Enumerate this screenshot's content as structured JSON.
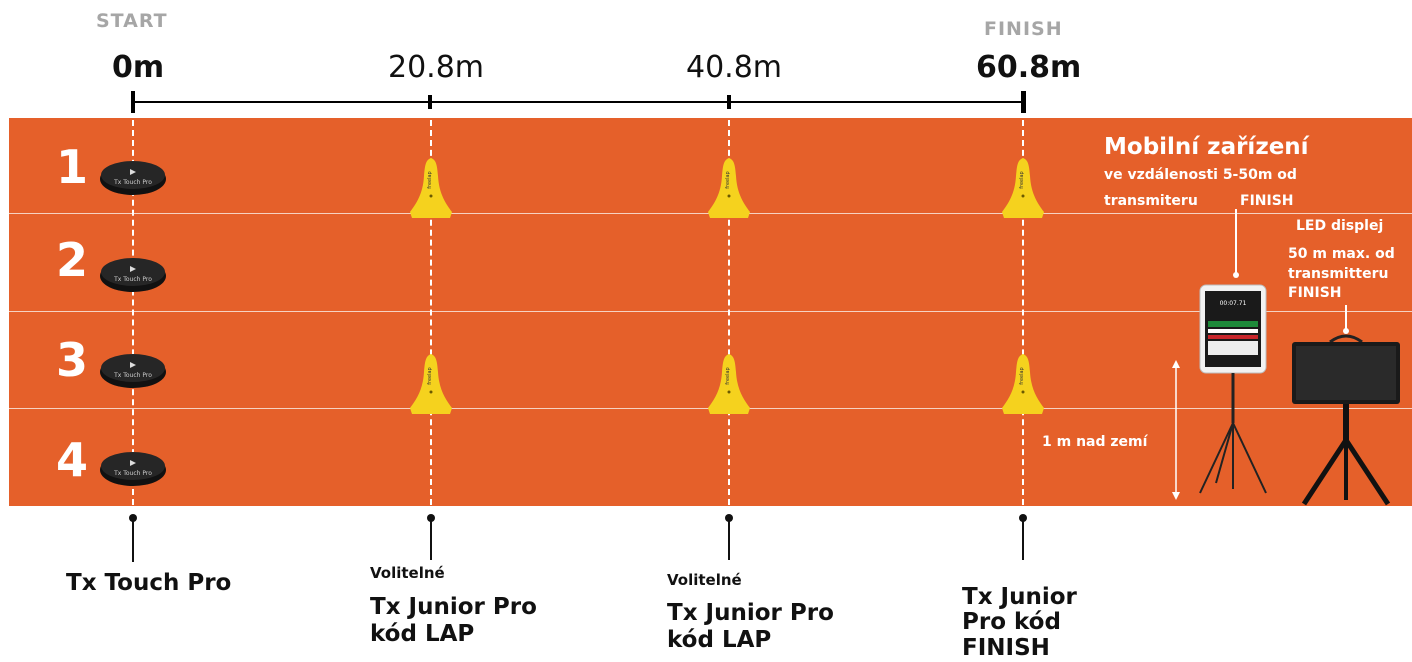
{
  "header": {
    "start_label": "START",
    "finish_label": "FINISH",
    "markers": [
      "0m",
      "20.8m",
      "40.8m",
      "60.8m"
    ]
  },
  "lanes": [
    "1",
    "2",
    "3",
    "4"
  ],
  "device": {
    "title": "Mobilní zařízení",
    "line1": "ve vzdálenosti 5-50m od",
    "line2a": "transmiteru",
    "line2b": "FINISH",
    "screen_time": "00:07.71"
  },
  "led": {
    "title": "LED displej",
    "line1": "50 m max. od",
    "line2": "transmitteru",
    "line3": "FINISH"
  },
  "height_label": "1 m nad zemí",
  "touch_pad_text": "Tx Touch Pro",
  "cone_brand": "freelap",
  "bottom": {
    "touch": "Tx Touch Pro",
    "lap1_small": "Volitelné",
    "lap1_line1": "Tx Junior Pro",
    "lap1_line2": "kód LAP",
    "lap2_small": "Volitelné",
    "lap2_line1": "Tx Junior Pro",
    "lap2_line2": "kód LAP",
    "finish_line1": "Tx Junior",
    "finish_line2": "Pro kód",
    "finish_line3": "FINISH"
  },
  "colors": {
    "track": "#e5602a",
    "cone": "#f5d21e",
    "pad": "#1e1e1e"
  }
}
